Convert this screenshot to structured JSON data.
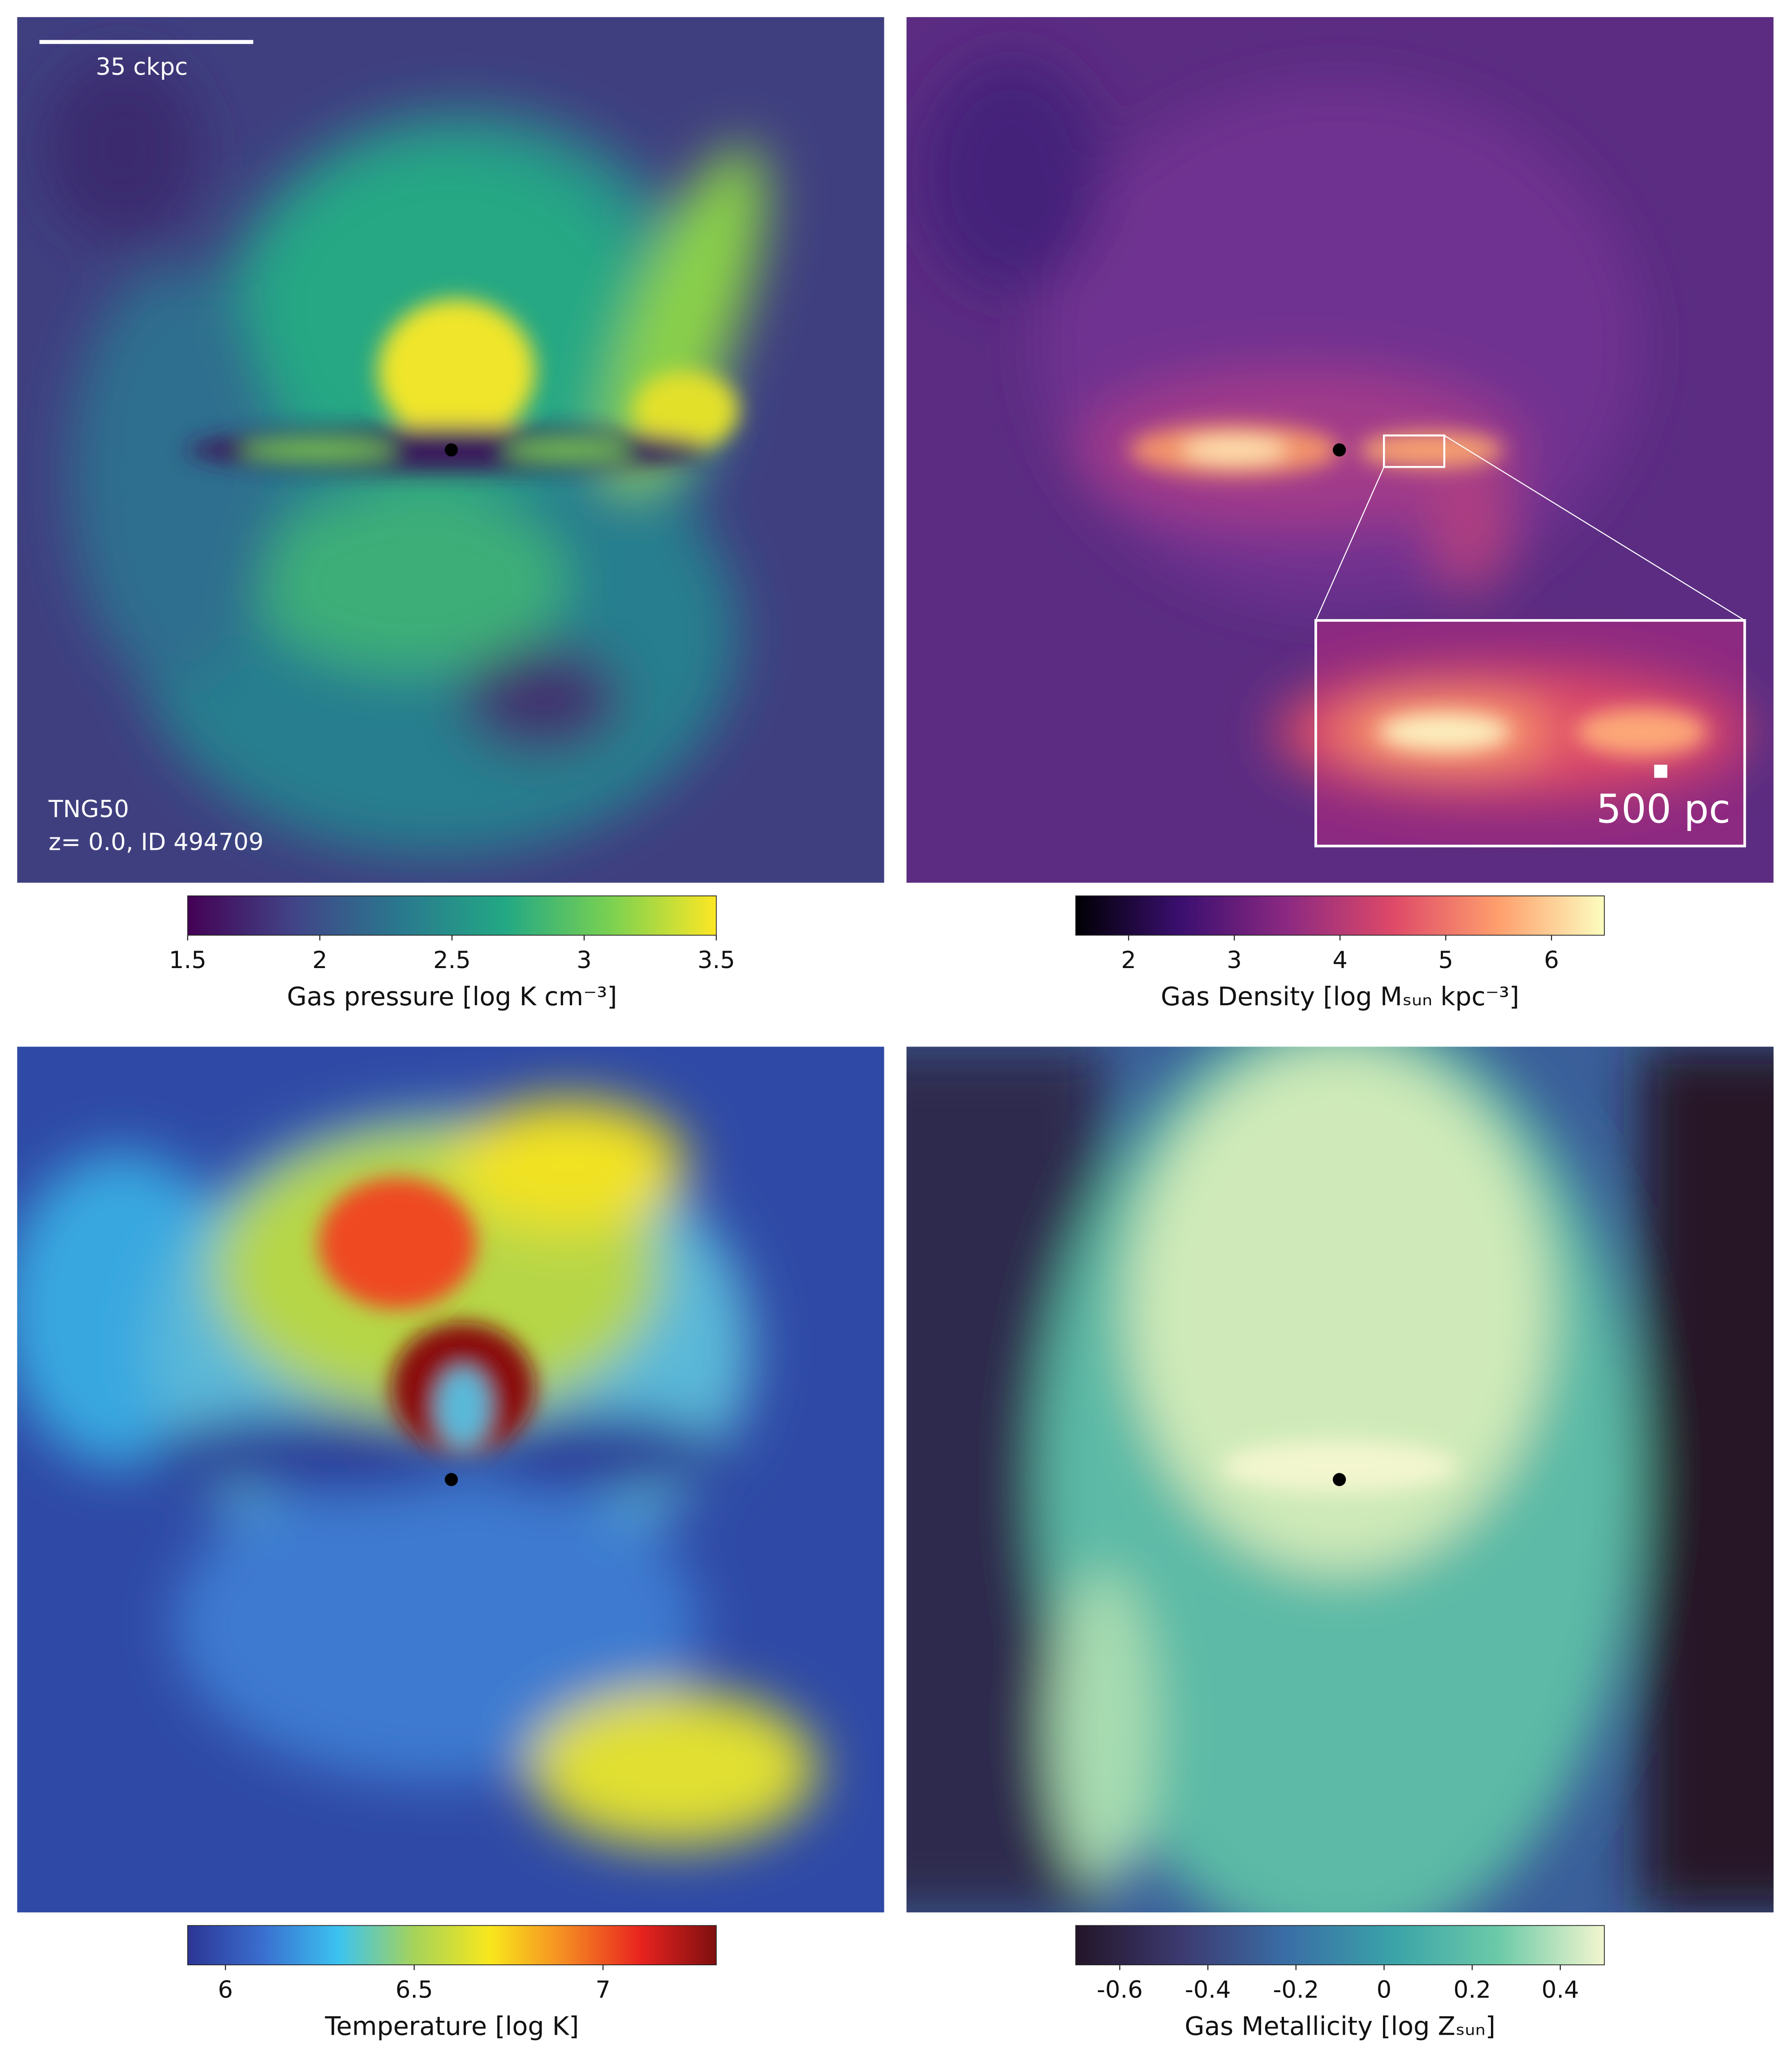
{
  "chart_data": [
    {
      "type": "image",
      "colormap": "viridis",
      "colorbar": {
        "label": "Gas pressure [log K cm⁻³]",
        "clim": [
          1.5,
          3.5
        ],
        "ticks": [
          1.5,
          2,
          2.5,
          3,
          3.5
        ]
      },
      "annotations": [
        "35 ckpc",
        "TNG50",
        "z= 0.0, ID 494709"
      ]
    },
    {
      "type": "image",
      "colormap": "magma",
      "colorbar": {
        "label": "Gas Density [log Mₛᵤₙ kpc⁻³]",
        "clim": [
          1.5,
          6.5
        ],
        "ticks": [
          2,
          3,
          4,
          5,
          6
        ]
      },
      "annotations": [
        "500 pc"
      ]
    },
    {
      "type": "image",
      "colormap": "jet",
      "colorbar": {
        "label": "Temperature [log K]",
        "clim": [
          5.9,
          7.3
        ],
        "ticks": [
          6,
          6.5,
          7
        ]
      }
    },
    {
      "type": "image",
      "colormap": "mako",
      "colorbar": {
        "label": "Gas Metallicity [log Zₛᵤₙ]",
        "clim": [
          -0.7,
          0.5
        ],
        "ticks": [
          -0.6,
          -0.4,
          -0.2,
          0,
          0.2,
          0.4
        ]
      }
    }
  ]
}
